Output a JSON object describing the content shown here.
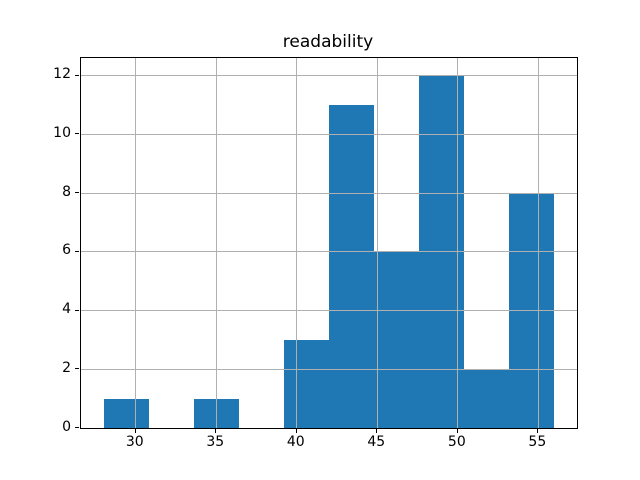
{
  "chart_data": {
    "type": "bar",
    "subtype": "histogram",
    "title": "readability",
    "xlabel": "",
    "ylabel": "",
    "bin_edges": [
      28.0,
      30.8,
      33.6,
      36.4,
      39.2,
      42.0,
      44.8,
      47.6,
      50.4,
      53.2,
      56.0
    ],
    "counts": [
      1,
      0,
      1,
      0,
      3,
      11,
      6,
      12,
      2,
      8
    ],
    "xticks": [
      30,
      35,
      40,
      45,
      50,
      55
    ],
    "yticks": [
      0,
      2,
      4,
      6,
      8,
      10,
      12
    ],
    "xlim": [
      26.6,
      57.4
    ],
    "ylim": [
      0,
      12.6
    ],
    "grid": true,
    "grid_above_bars": true,
    "legend": false,
    "colors": {
      "bar": "#1f77b4",
      "grid": "#b0b0b0",
      "spine": "#000000",
      "text": "#000000",
      "background": "#ffffff"
    }
  }
}
